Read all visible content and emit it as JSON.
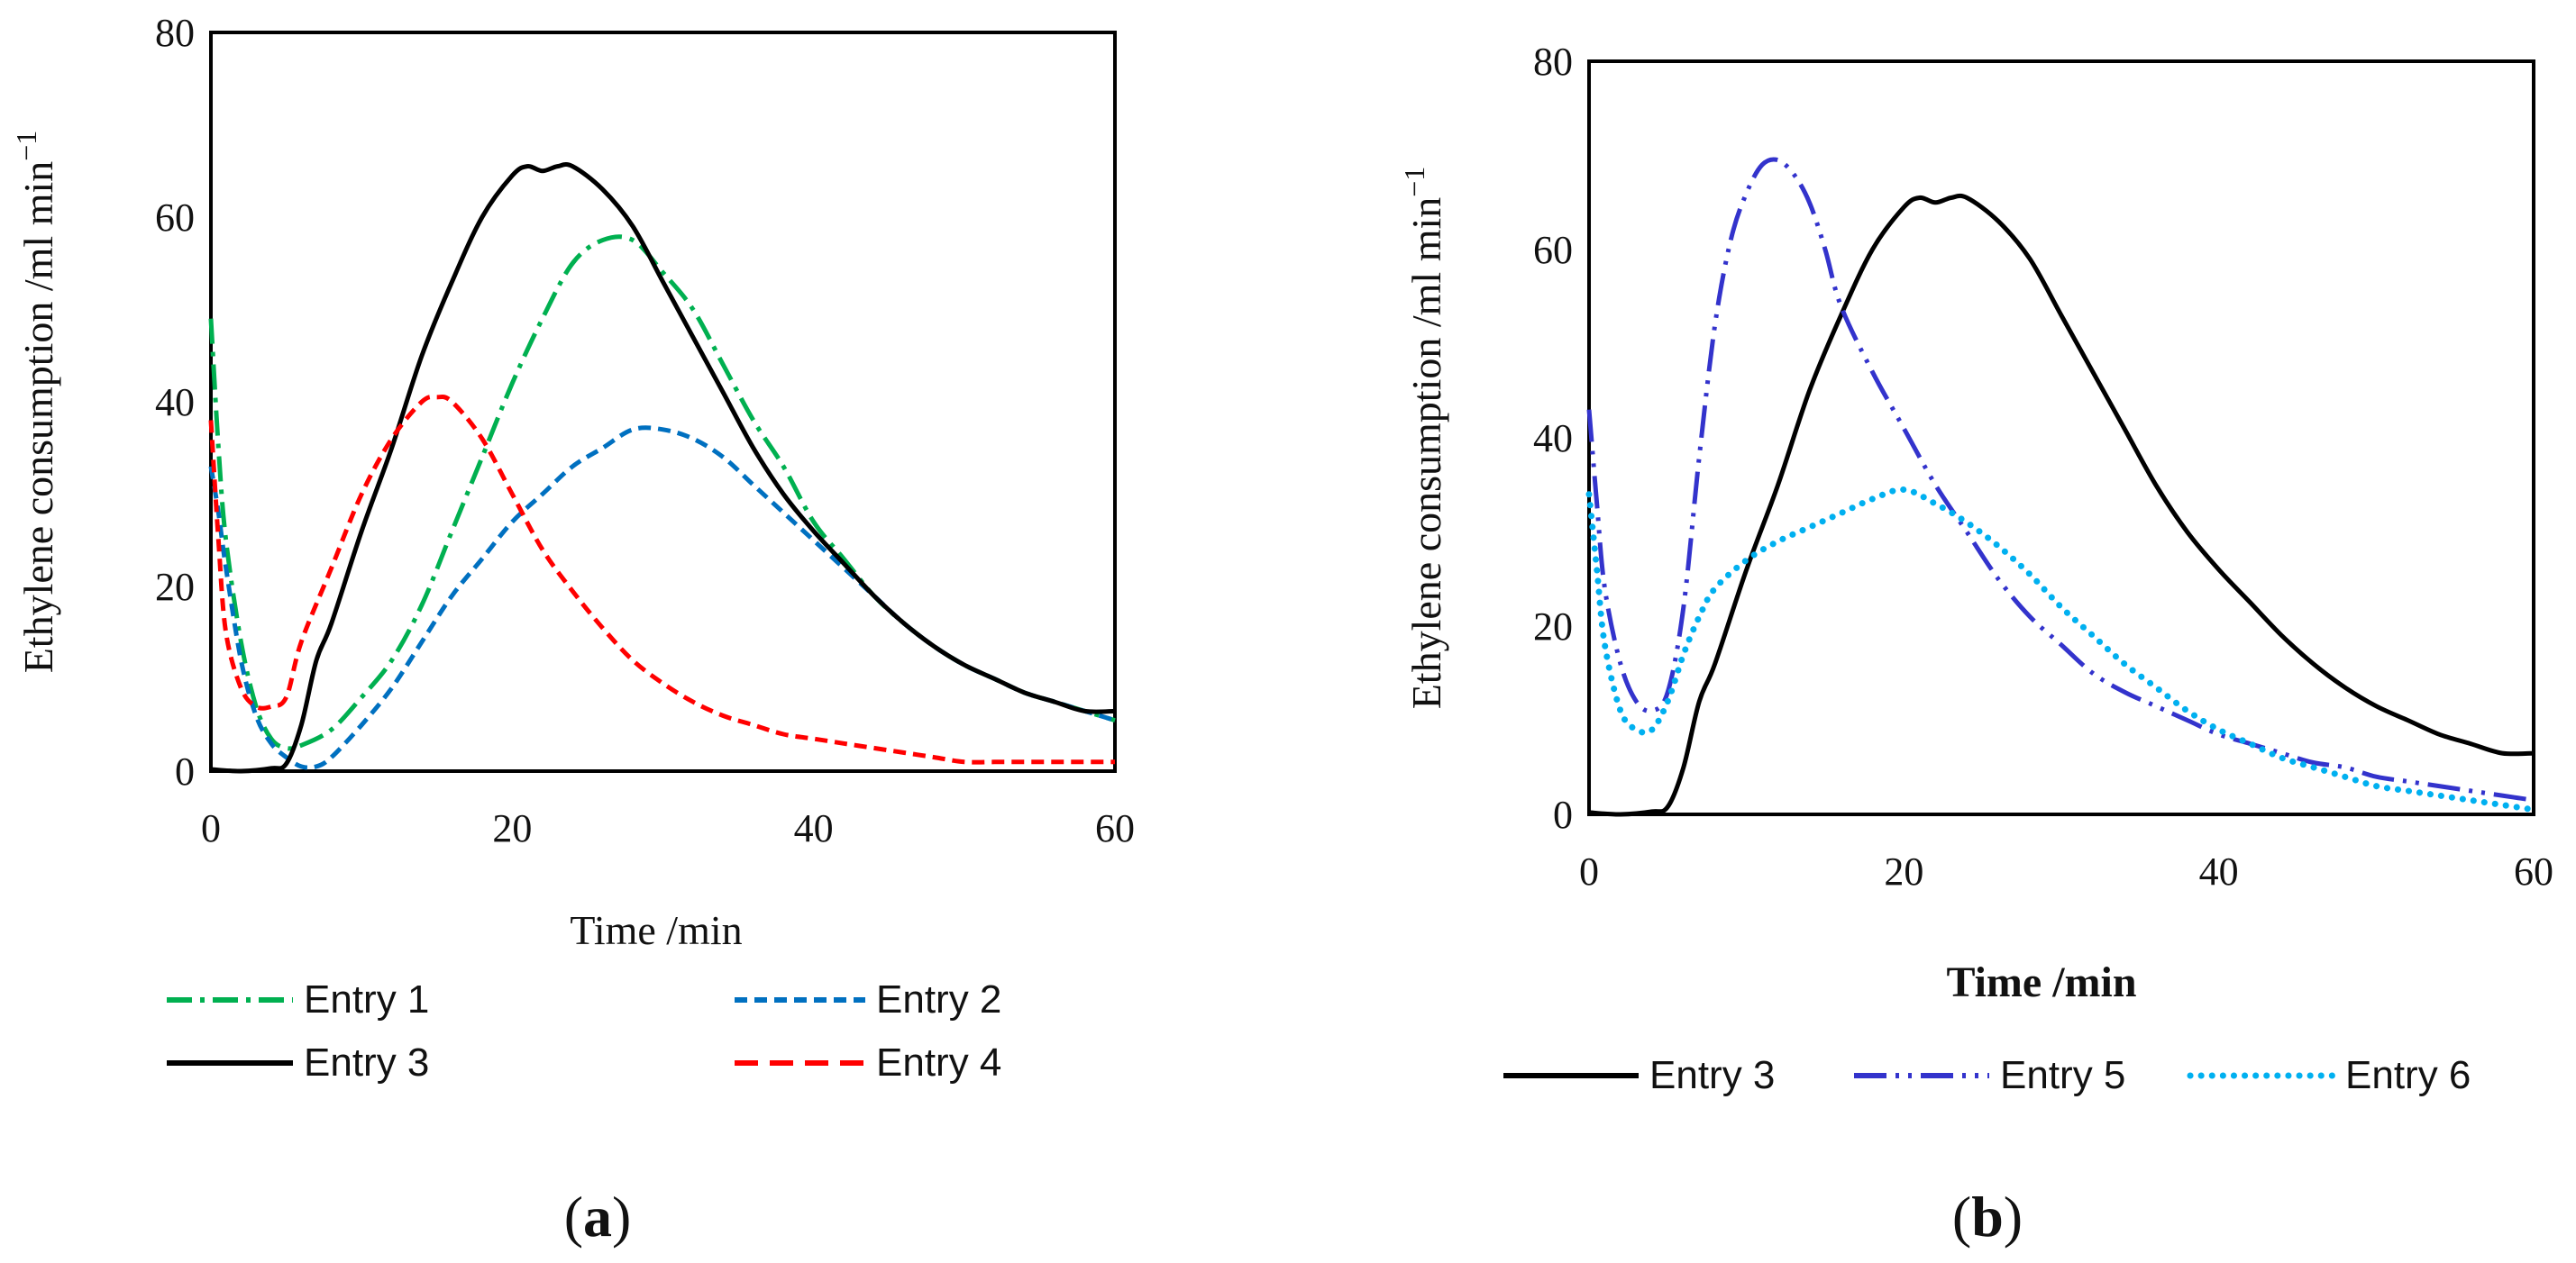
{
  "chart_data": [
    {
      "type": "line",
      "panel": "(a)",
      "panel_letter": "a",
      "xlabel": "Time /min",
      "ylabel": "Ethylene  consumption /ml min",
      "ylabel_superscript": "−1",
      "xlim": [
        0,
        60
      ],
      "ylim": [
        0,
        80
      ],
      "xticks": [
        "0",
        "20",
        "40",
        "60"
      ],
      "yticks": [
        "0",
        "20",
        "40",
        "60",
        "80"
      ],
      "legend_position": "bottom",
      "series": [
        {
          "name": "Entry 1",
          "color": "#00b050",
          "dash": "dashdot",
          "x": [
            0,
            0.5,
            1,
            2,
            3,
            4,
            5,
            6,
            8,
            10,
            12,
            14,
            16,
            18,
            20,
            22,
            24,
            26,
            28,
            30,
            32,
            34,
            36,
            38,
            40,
            42,
            44,
            46,
            48,
            50,
            52,
            54,
            56,
            58,
            60
          ],
          "y": [
            49,
            35,
            25,
            14,
            7,
            3.5,
            2.5,
            2.8,
            4.5,
            8,
            12,
            18,
            26,
            34,
            42,
            49,
            55,
            57.5,
            57.5,
            54,
            50,
            44,
            38,
            33,
            27,
            23,
            19,
            16,
            13.5,
            11.5,
            10,
            8.5,
            7.5,
            6.5,
            5.5
          ]
        },
        {
          "name": "Entry 2",
          "color": "#0070c0",
          "dash": "dashed",
          "x": [
            0,
            0.5,
            1,
            2,
            3,
            4,
            5,
            6,
            7,
            8,
            10,
            12,
            14,
            16,
            18,
            20,
            22,
            24,
            26,
            28,
            30,
            32,
            34,
            36,
            38,
            40,
            42,
            44,
            46,
            48,
            50,
            52,
            54,
            56,
            58,
            60
          ],
          "y": [
            33,
            28,
            22,
            12,
            6,
            3,
            1.5,
            0.5,
            0.5,
            1.5,
            5,
            9,
            14,
            19,
            23,
            27,
            30,
            33,
            35,
            37,
            37,
            36,
            34,
            31,
            28,
            25,
            22,
            19,
            16,
            13.5,
            11.5,
            10,
            8.5,
            7.5,
            6.5,
            5.5
          ]
        },
        {
          "name": "Entry 3",
          "color": "#000000",
          "dash": "solid",
          "x": [
            0,
            2,
            4,
            5,
            6,
            7,
            8,
            10,
            12,
            14,
            16,
            18,
            20,
            21,
            22,
            23,
            24,
            26,
            28,
            30,
            32,
            34,
            36,
            38,
            40,
            42,
            44,
            46,
            48,
            50,
            52,
            54,
            56,
            58,
            60
          ],
          "y": [
            0.2,
            0,
            0.3,
            0.8,
            5,
            12,
            16,
            26,
            35,
            45,
            53,
            60,
            64.5,
            65.5,
            65,
            65.5,
            65.5,
            63,
            59,
            53,
            47,
            41,
            35,
            30,
            26,
            22.5,
            19,
            16,
            13.5,
            11.5,
            10,
            8.5,
            7.5,
            6.5,
            6.5
          ]
        },
        {
          "name": "Entry 4",
          "color": "#ff0000",
          "dash": "dashed",
          "x": [
            0,
            0.5,
            1,
            2,
            3,
            4,
            5,
            6,
            8,
            10,
            12,
            14,
            15,
            16,
            18,
            20,
            22,
            24,
            26,
            28,
            30,
            32,
            34,
            36,
            38,
            40,
            42,
            44,
            46,
            48,
            50,
            52,
            54,
            56,
            58,
            60
          ],
          "y": [
            38,
            25,
            15,
            9,
            7,
            7,
            8,
            14,
            22,
            30,
            36,
            40,
            40.5,
            40,
            36,
            30,
            24,
            19.5,
            15.5,
            12,
            9.5,
            7.5,
            6,
            5,
            4,
            3.5,
            3,
            2.5,
            2,
            1.5,
            1,
            1,
            1,
            1,
            1,
            1
          ]
        }
      ]
    },
    {
      "type": "line",
      "panel": "(b)",
      "panel_letter": "b",
      "xlabel": "Time /min",
      "ylabel": "Ethylene  consumption /ml min",
      "ylabel_superscript": "−1",
      "xlim": [
        0,
        60
      ],
      "ylim": [
        0,
        80
      ],
      "xticks": [
        "0",
        "20",
        "40",
        "60"
      ],
      "yticks": [
        "0",
        "20",
        "40",
        "60",
        "80"
      ],
      "legend_position": "bottom",
      "series": [
        {
          "name": "Entry 3",
          "color": "#000000",
          "dash": "solid",
          "x": [
            0,
            2,
            4,
            5,
            6,
            7,
            8,
            10,
            12,
            14,
            16,
            18,
            20,
            21,
            22,
            23,
            24,
            26,
            28,
            30,
            32,
            34,
            36,
            38,
            40,
            42,
            44,
            46,
            48,
            50,
            52,
            54,
            56,
            58,
            60
          ],
          "y": [
            0.2,
            0,
            0.3,
            0.8,
            5,
            12,
            16,
            26,
            35,
            45,
            53,
            60,
            64.5,
            65.5,
            65,
            65.5,
            65.5,
            63,
            59,
            53,
            47,
            41,
            35,
            30,
            26,
            22.5,
            19,
            16,
            13.5,
            11.5,
            10,
            8.5,
            7.5,
            6.5,
            6.5
          ]
        },
        {
          "name": "Entry 5",
          "color": "#3333cc",
          "dash": "longdashdotdot",
          "x": [
            0,
            0.5,
            1,
            2,
            3,
            4,
            5,
            6,
            7,
            8,
            9,
            10,
            11,
            12,
            13,
            14,
            15,
            16,
            18,
            20,
            22,
            24,
            26,
            28,
            30,
            32,
            34,
            36,
            38,
            40,
            42,
            44,
            46,
            48,
            50,
            52,
            54,
            56,
            58,
            60
          ],
          "y": [
            43,
            33,
            24,
            16,
            12,
            11,
            13,
            22,
            38,
            52,
            61,
            66,
            69,
            69.5,
            68,
            65,
            60,
            54,
            47,
            41,
            35,
            30,
            25,
            21,
            18,
            15,
            13,
            11.5,
            10,
            8.5,
            7.5,
            6.5,
            5.5,
            5,
            4,
            3.5,
            3,
            2.5,
            2,
            1.5
          ]
        },
        {
          "name": "Entry 6",
          "color": "#00b0f0",
          "dash": "dotted",
          "x": [
            0,
            0.5,
            1,
            2,
            3,
            4,
            5,
            6,
            7,
            8,
            10,
            12,
            14,
            16,
            18,
            20,
            22,
            24,
            26,
            28,
            30,
            32,
            34,
            36,
            38,
            40,
            42,
            44,
            46,
            48,
            50,
            52,
            54,
            56,
            58,
            60
          ],
          "y": [
            34,
            26,
            18,
            11,
            9,
            9,
            12,
            17,
            21,
            24,
            27,
            29,
            30.5,
            32,
            33.5,
            34.5,
            33,
            31,
            28.5,
            25.5,
            22,
            19,
            16,
            13.5,
            11,
            9,
            7.5,
            6,
            5,
            4,
            3,
            2.5,
            2,
            1.5,
            1,
            0.5
          ]
        }
      ]
    }
  ]
}
